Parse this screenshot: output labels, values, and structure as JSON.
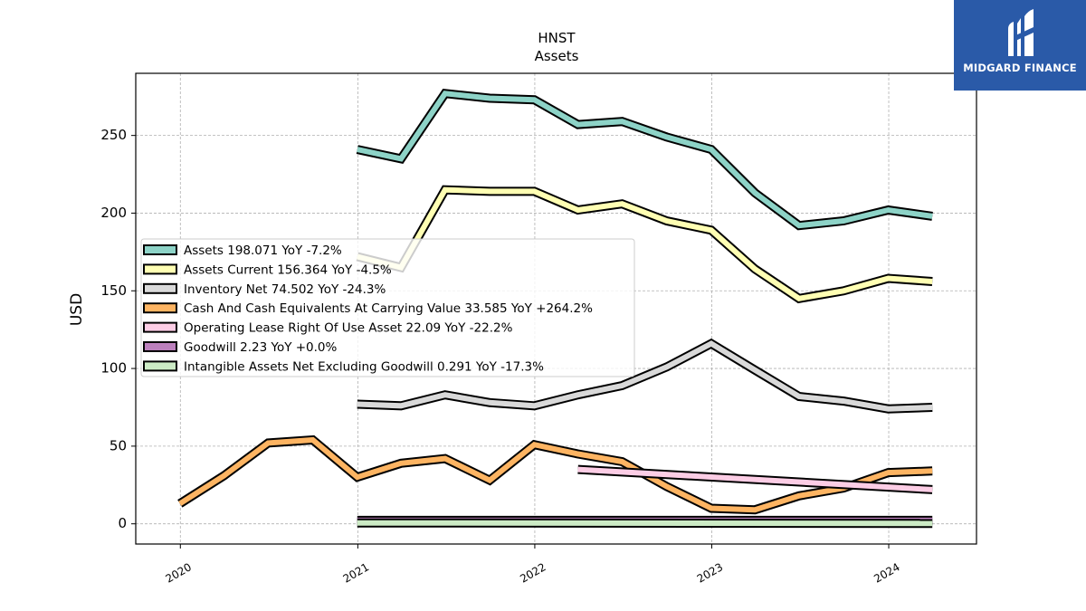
{
  "title": "HNST",
  "subtitle": "Assets",
  "brand": "MIDGARD FINANCE",
  "chart_data": {
    "type": "line",
    "xlabel": "",
    "ylabel": "USD",
    "xlim": [
      "2019-10-01",
      "2024-06-30"
    ],
    "ylim": [
      -13,
      290
    ],
    "x_ticks": [
      "2020",
      "2021",
      "2022",
      "2023",
      "2024"
    ],
    "y_ticks": [
      0,
      50,
      100,
      150,
      200,
      250
    ],
    "grid": true,
    "legend_position": "center-left",
    "series": [
      {
        "name": "Assets  198.071 YoY -7.2%",
        "color": "#8dd3c7",
        "points": [
          [
            "2020-12-31",
            241
          ],
          [
            "2021-03-31",
            235
          ],
          [
            "2021-06-30",
            277
          ],
          [
            "2021-09-30",
            274
          ],
          [
            "2021-12-31",
            273
          ],
          [
            "2022-03-31",
            257
          ],
          [
            "2022-06-30",
            259
          ],
          [
            "2022-09-30",
            249
          ],
          [
            "2022-12-31",
            241
          ],
          [
            "2023-03-31",
            213
          ],
          [
            "2023-06-30",
            192
          ],
          [
            "2023-09-30",
            195
          ],
          [
            "2023-12-31",
            202
          ],
          [
            "2024-03-31",
            198
          ]
        ]
      },
      {
        "name": "Assets Current  156.364 YoY -4.5%",
        "color": "#ffffb3",
        "points": [
          [
            "2020-12-31",
            172
          ],
          [
            "2021-03-31",
            165
          ],
          [
            "2021-06-30",
            215
          ],
          [
            "2021-09-30",
            214
          ],
          [
            "2021-12-31",
            214
          ],
          [
            "2022-03-31",
            202
          ],
          [
            "2022-06-30",
            206
          ],
          [
            "2022-09-30",
            195
          ],
          [
            "2022-12-31",
            189
          ],
          [
            "2023-03-31",
            164
          ],
          [
            "2023-06-30",
            145
          ],
          [
            "2023-09-30",
            150
          ],
          [
            "2023-12-31",
            158
          ],
          [
            "2024-03-31",
            156
          ]
        ]
      },
      {
        "name": "Inventory Net  74.502 YoY -24.3%",
        "color": "#d9d9d9",
        "points": [
          [
            "2020-12-31",
            77
          ],
          [
            "2021-03-31",
            76
          ],
          [
            "2021-06-30",
            83
          ],
          [
            "2021-09-30",
            78
          ],
          [
            "2021-12-31",
            76
          ],
          [
            "2022-03-31",
            83
          ],
          [
            "2022-06-30",
            89
          ],
          [
            "2022-09-30",
            101
          ],
          [
            "2022-12-31",
            116
          ],
          [
            "2023-03-31",
            99
          ],
          [
            "2023-06-30",
            82
          ],
          [
            "2023-09-30",
            79
          ],
          [
            "2023-12-31",
            74
          ],
          [
            "2024-03-31",
            75
          ]
        ]
      },
      {
        "name": "Cash And Cash Equivalents At Carrying Value  33.585 YoY +264.2%",
        "color": "#fdb462",
        "points": [
          [
            "2019-12-31",
            13
          ],
          [
            "2020-03-31",
            31
          ],
          [
            "2020-06-30",
            52
          ],
          [
            "2020-09-30",
            54
          ],
          [
            "2020-12-31",
            30
          ],
          [
            "2021-03-31",
            39
          ],
          [
            "2021-06-30",
            42
          ],
          [
            "2021-09-30",
            28
          ],
          [
            "2021-12-31",
            51
          ],
          [
            "2022-03-31",
            45
          ],
          [
            "2022-06-30",
            40
          ],
          [
            "2022-09-30",
            24
          ],
          [
            "2022-12-31",
            10
          ],
          [
            "2023-03-31",
            9
          ],
          [
            "2023-06-30",
            18
          ],
          [
            "2023-09-30",
            23
          ],
          [
            "2023-12-31",
            33
          ],
          [
            "2024-03-31",
            34
          ]
        ]
      },
      {
        "name": "Operating Lease Right Of Use Asset  22.09 YoY -22.2%",
        "color": "#fccde5",
        "points": [
          [
            "2022-03-31",
            35
          ],
          [
            "2024-03-31",
            22
          ]
        ]
      },
      {
        "name": "Goodwill  2.23 YoY +0.0%",
        "color": "#bc80bd",
        "points": [
          [
            "2020-12-31",
            2.23
          ],
          [
            "2024-03-31",
            2.23
          ]
        ]
      },
      {
        "name": "Intangible Assets Net Excluding Goodwill  0.291 YoY -17.3%",
        "color": "#ccebc5",
        "points": [
          [
            "2020-12-31",
            0.6
          ],
          [
            "2024-03-31",
            0.291
          ]
        ]
      }
    ]
  }
}
